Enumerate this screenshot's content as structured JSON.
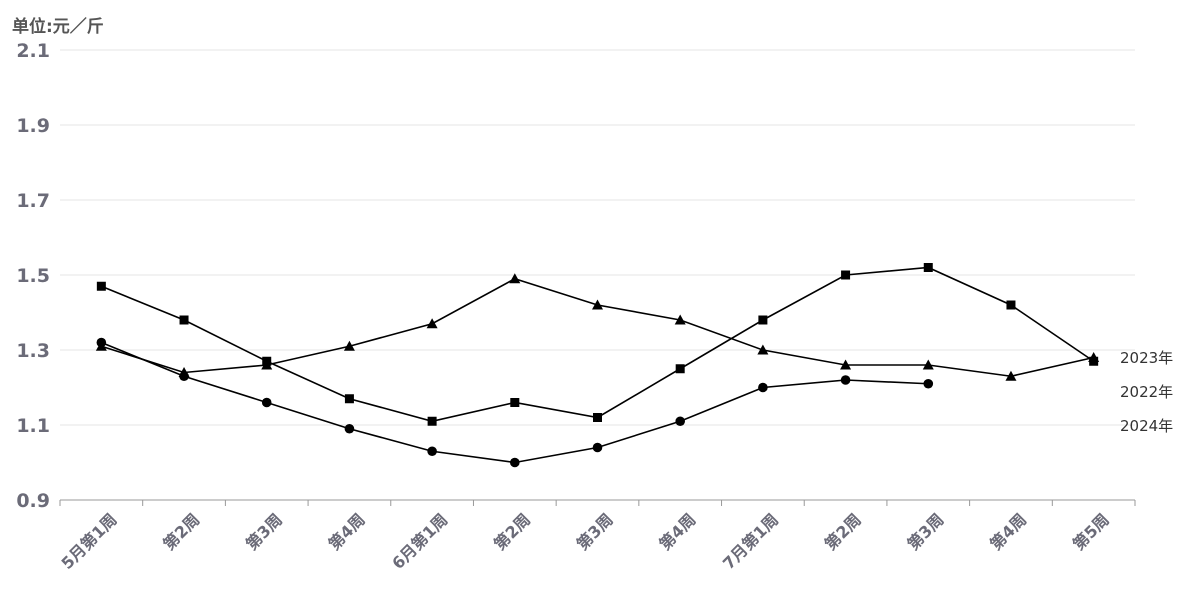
{
  "chart_data": {
    "type": "line",
    "unit_label": "单位:元／斤",
    "categories": [
      "5月第1周",
      "第2周",
      "第3周",
      "第4周",
      "6月第1周",
      "第2周",
      "第3周",
      "第4周",
      "7月第1周",
      "第2周",
      "第3周",
      "第4周",
      "第5周"
    ],
    "yticks": [
      "0.9",
      "1.1",
      "1.3",
      "1.5",
      "1.7",
      "1.9",
      "2.1"
    ],
    "ylim": [
      0.9,
      2.1
    ],
    "grid": true,
    "series": [
      {
        "name": "2023年",
        "marker": "triangle",
        "values": [
          1.31,
          1.24,
          1.26,
          1.31,
          1.37,
          1.49,
          1.42,
          1.38,
          1.3,
          1.26,
          1.26,
          1.23,
          1.28
        ]
      },
      {
        "name": "2022年",
        "marker": "square",
        "values": [
          1.47,
          1.38,
          1.27,
          1.17,
          1.11,
          1.16,
          1.12,
          1.25,
          1.38,
          1.5,
          1.52,
          1.42,
          1.27
        ]
      },
      {
        "name": "2024年",
        "marker": "circle",
        "values": [
          1.32,
          1.23,
          1.16,
          1.09,
          1.03,
          1.0,
          1.04,
          1.11,
          1.2,
          1.22,
          1.21,
          null,
          null
        ]
      }
    ]
  }
}
